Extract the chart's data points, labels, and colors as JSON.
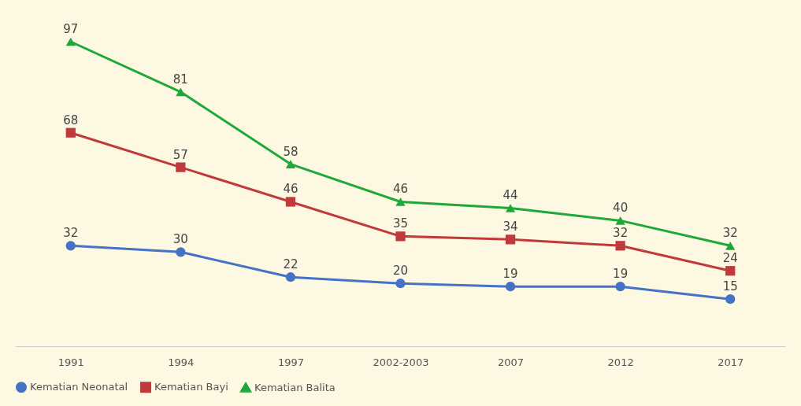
{
  "chart_data": {
    "type": "line",
    "categories": [
      "1991",
      "1994",
      "1997",
      "2002-2003",
      "2007",
      "2012",
      "2017"
    ],
    "series": [
      {
        "name": "Kematian Neonatal",
        "color": "#4472c4",
        "marker": "circle",
        "values": [
          32,
          30,
          22,
          20,
          19,
          19,
          15
        ]
      },
      {
        "name": "Kematian Bayi",
        "color": "#c0393b",
        "marker": "square",
        "values": [
          68,
          57,
          46,
          35,
          34,
          32,
          24
        ]
      },
      {
        "name": "Kematian Balita",
        "color": "#1fa83a",
        "marker": "triangle",
        "values": [
          97,
          81,
          58,
          46,
          44,
          40,
          32
        ]
      }
    ],
    "data_labels": true,
    "grid": false,
    "legend": "bottom",
    "line_style": "solid"
  }
}
